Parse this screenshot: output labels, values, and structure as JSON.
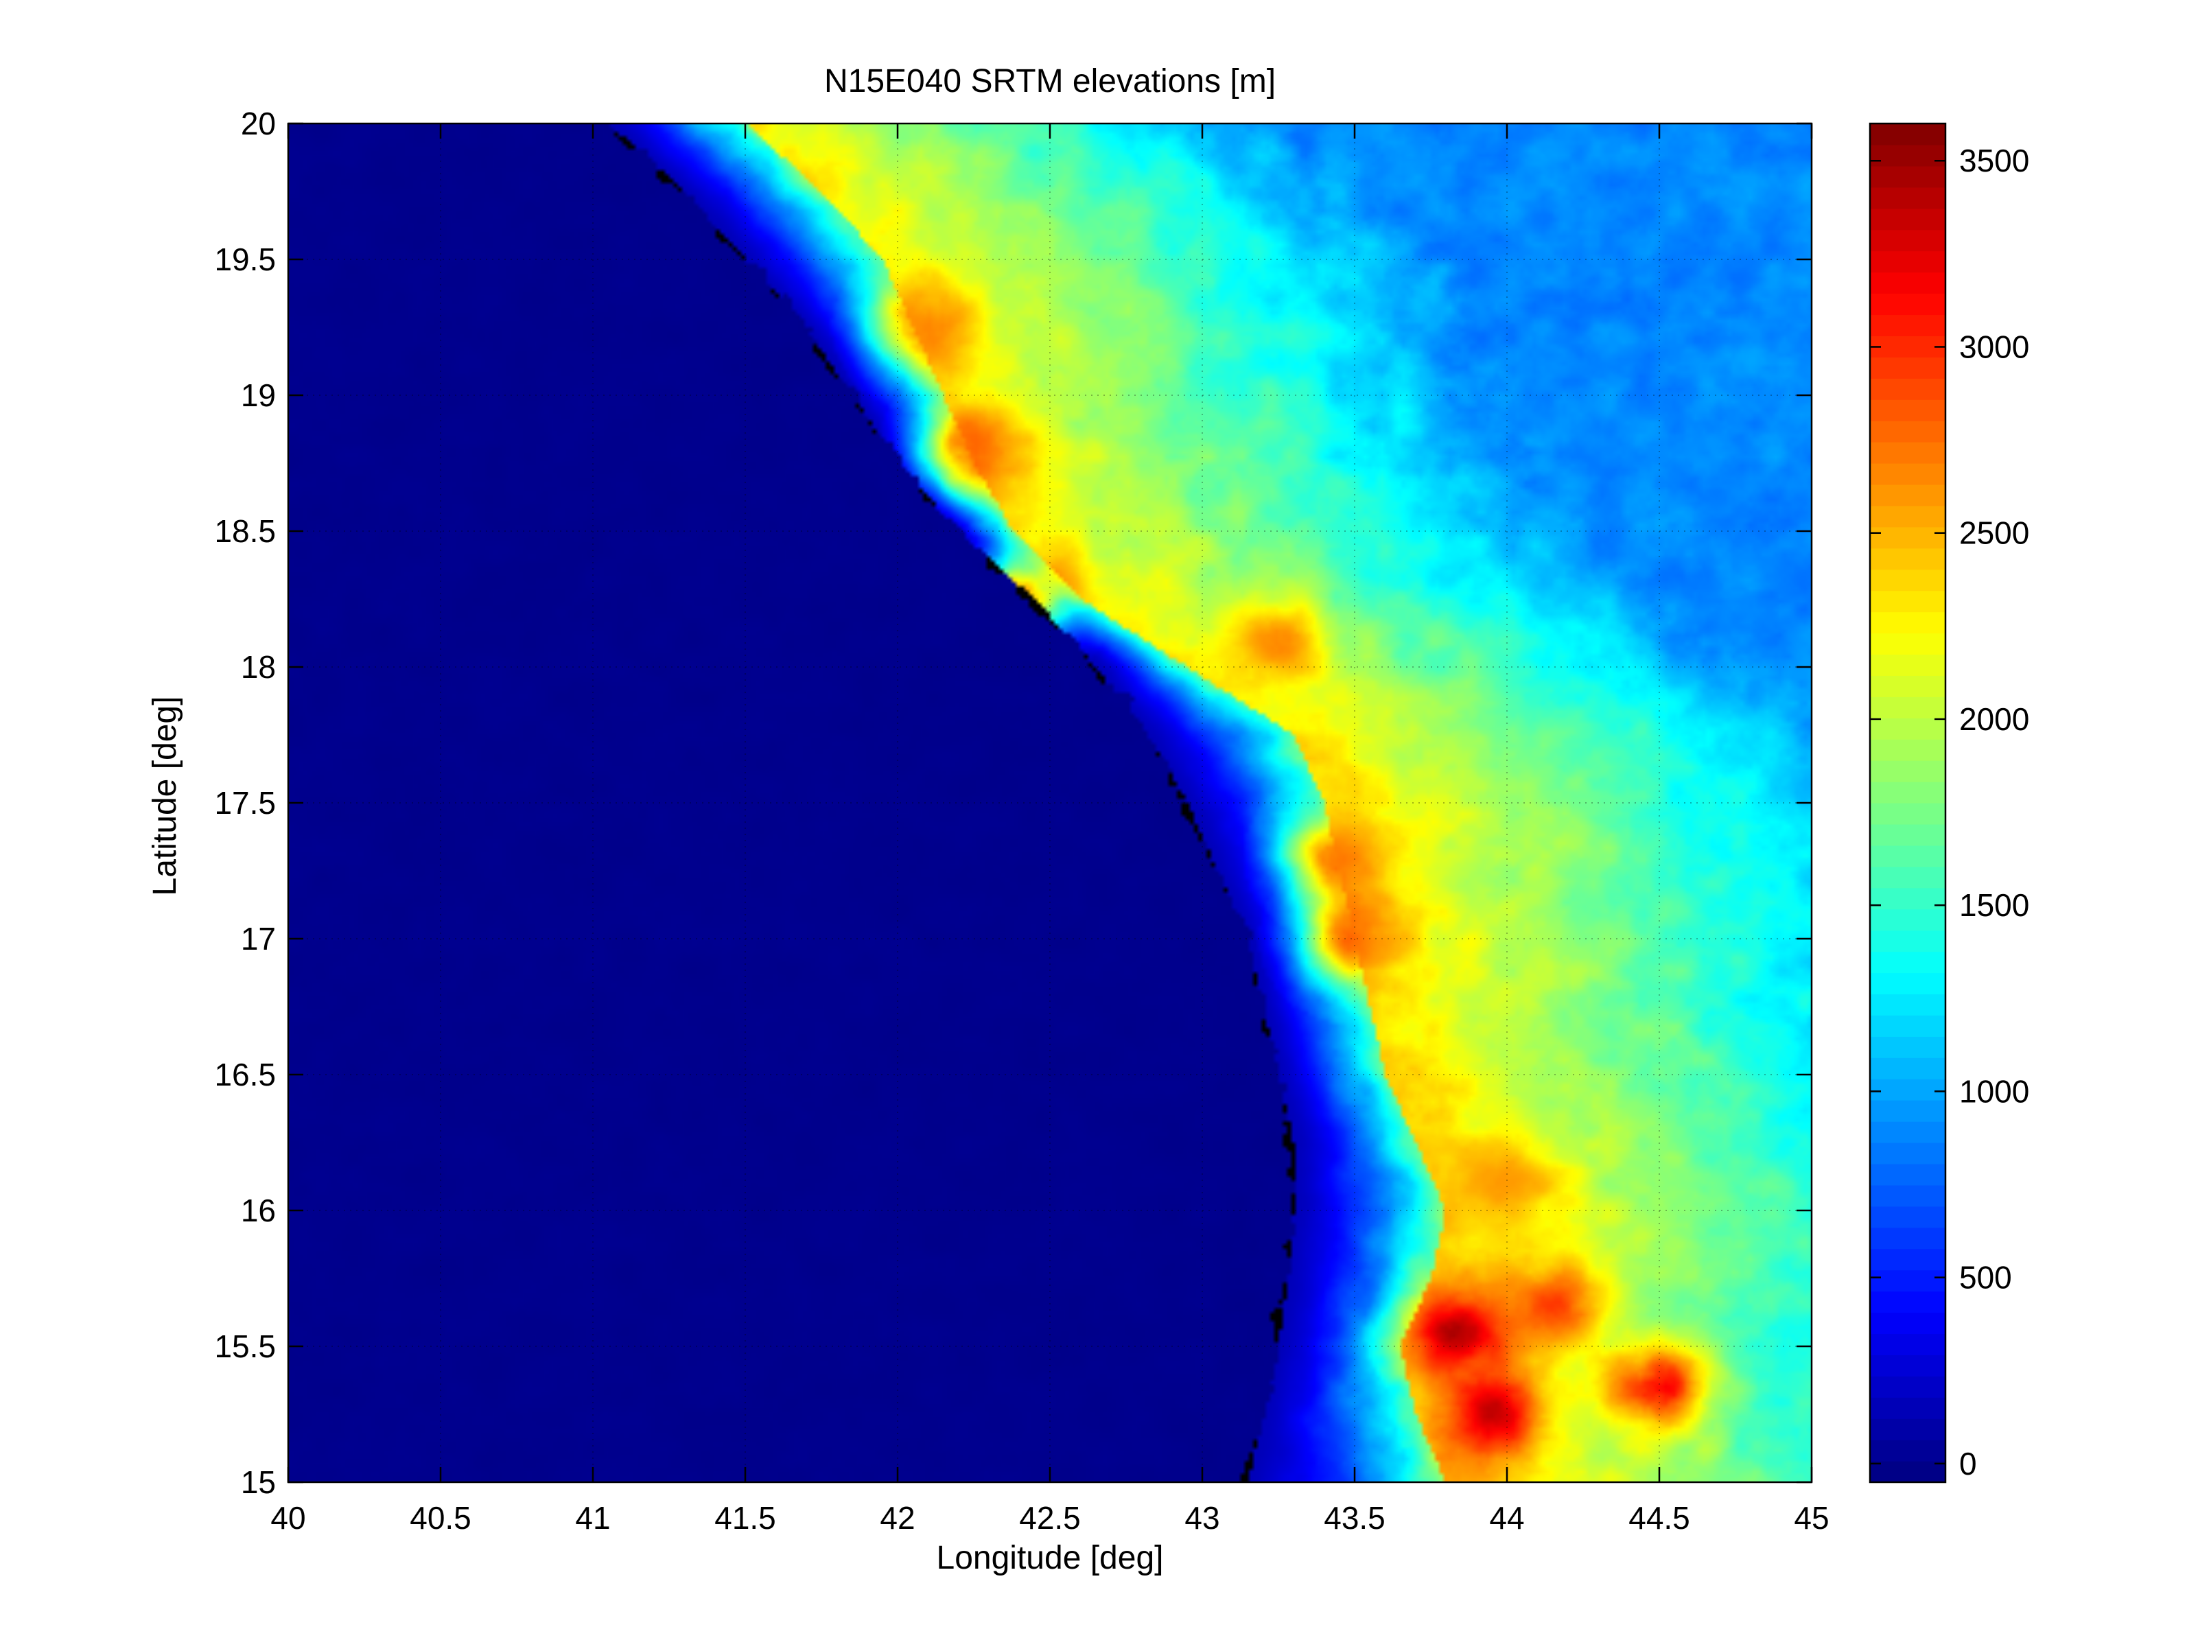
{
  "chart_data": {
    "type": "heatmap",
    "title": "N15E040 SRTM elevations [m]",
    "xlabel": "Longitude [deg]",
    "ylabel": "Latitude [deg]",
    "xlim": [
      40,
      45
    ],
    "ylim": [
      15,
      20
    ],
    "xticks": [
      40,
      40.5,
      41,
      41.5,
      42,
      42.5,
      43,
      43.5,
      44,
      44.5,
      45
    ],
    "xtick_labels": [
      "40",
      "40.5",
      "41",
      "41.5",
      "42",
      "42.5",
      "43",
      "43.5",
      "44",
      "44.5",
      "45"
    ],
    "yticks": [
      15,
      15.5,
      16,
      16.5,
      17,
      17.5,
      18,
      18.5,
      19,
      19.5,
      20
    ],
    "ytick_labels": [
      "15",
      "15.5",
      "16",
      "16.5",
      "17",
      "17.5",
      "18",
      "18.5",
      "19",
      "19.5",
      "20"
    ],
    "grid": true,
    "colormap": "jet",
    "colorbar": {
      "placement": "right",
      "clim": [
        -50,
        3600
      ],
      "ticks": [
        0,
        500,
        1000,
        1500,
        2000,
        2500,
        3000,
        3500
      ],
      "tick_labels": [
        "0",
        "500",
        "1000",
        "1500",
        "2000",
        "2500",
        "3000",
        "3500"
      ]
    },
    "coastline_lat_lon": [
      [
        20.0,
        41.05
      ],
      [
        19.75,
        41.3
      ],
      [
        19.5,
        41.5
      ],
      [
        19.25,
        41.7
      ],
      [
        19.0,
        41.85
      ],
      [
        18.75,
        42.0
      ],
      [
        18.5,
        42.2
      ],
      [
        18.25,
        42.45
      ],
      [
        18.0,
        42.65
      ],
      [
        17.75,
        42.82
      ],
      [
        17.5,
        42.95
      ],
      [
        17.25,
        43.05
      ],
      [
        17.0,
        43.15
      ],
      [
        16.75,
        43.2
      ],
      [
        16.5,
        43.25
      ],
      [
        16.25,
        43.3
      ],
      [
        16.0,
        43.3
      ],
      [
        15.75,
        43.28
      ],
      [
        15.5,
        43.25
      ],
      [
        15.25,
        43.2
      ],
      [
        15.0,
        43.15
      ]
    ],
    "escarpment_lat_lon": [
      [
        20.0,
        41.5
      ],
      [
        19.75,
        41.75
      ],
      [
        19.5,
        41.95
      ],
      [
        19.25,
        42.05
      ],
      [
        19.0,
        42.15
      ],
      [
        18.75,
        42.25
      ],
      [
        18.5,
        42.38
      ],
      [
        18.25,
        42.6
      ],
      [
        18.0,
        42.95
      ],
      [
        17.75,
        43.3
      ],
      [
        17.5,
        43.4
      ],
      [
        17.25,
        43.45
      ],
      [
        17.0,
        43.5
      ],
      [
        16.75,
        43.55
      ],
      [
        16.5,
        43.6
      ],
      [
        16.25,
        43.7
      ],
      [
        16.0,
        43.8
      ],
      [
        15.75,
        43.75
      ],
      [
        15.5,
        43.65
      ],
      [
        15.25,
        43.7
      ],
      [
        15.0,
        43.8
      ]
    ],
    "highland_peaks": [
      {
        "lat": 19.25,
        "lon": 42.1,
        "elev": 2700
      },
      {
        "lat": 18.8,
        "lon": 42.25,
        "elev": 2800
      },
      {
        "lat": 18.25,
        "lon": 42.4,
        "elev": 2900
      },
      {
        "lat": 18.1,
        "lon": 43.25,
        "elev": 2650
      },
      {
        "lat": 17.3,
        "lon": 43.45,
        "elev": 2700
      },
      {
        "lat": 17.0,
        "lon": 43.5,
        "elev": 2750
      },
      {
        "lat": 15.55,
        "lon": 43.85,
        "elev": 3400
      },
      {
        "lat": 15.25,
        "lon": 43.95,
        "elev": 3300
      },
      {
        "lat": 15.65,
        "lon": 44.15,
        "elev": 2900
      },
      {
        "lat": 15.35,
        "lon": 44.5,
        "elev": 3200
      },
      {
        "lat": 16.1,
        "lon": 44.0,
        "elev": 2600
      }
    ]
  }
}
